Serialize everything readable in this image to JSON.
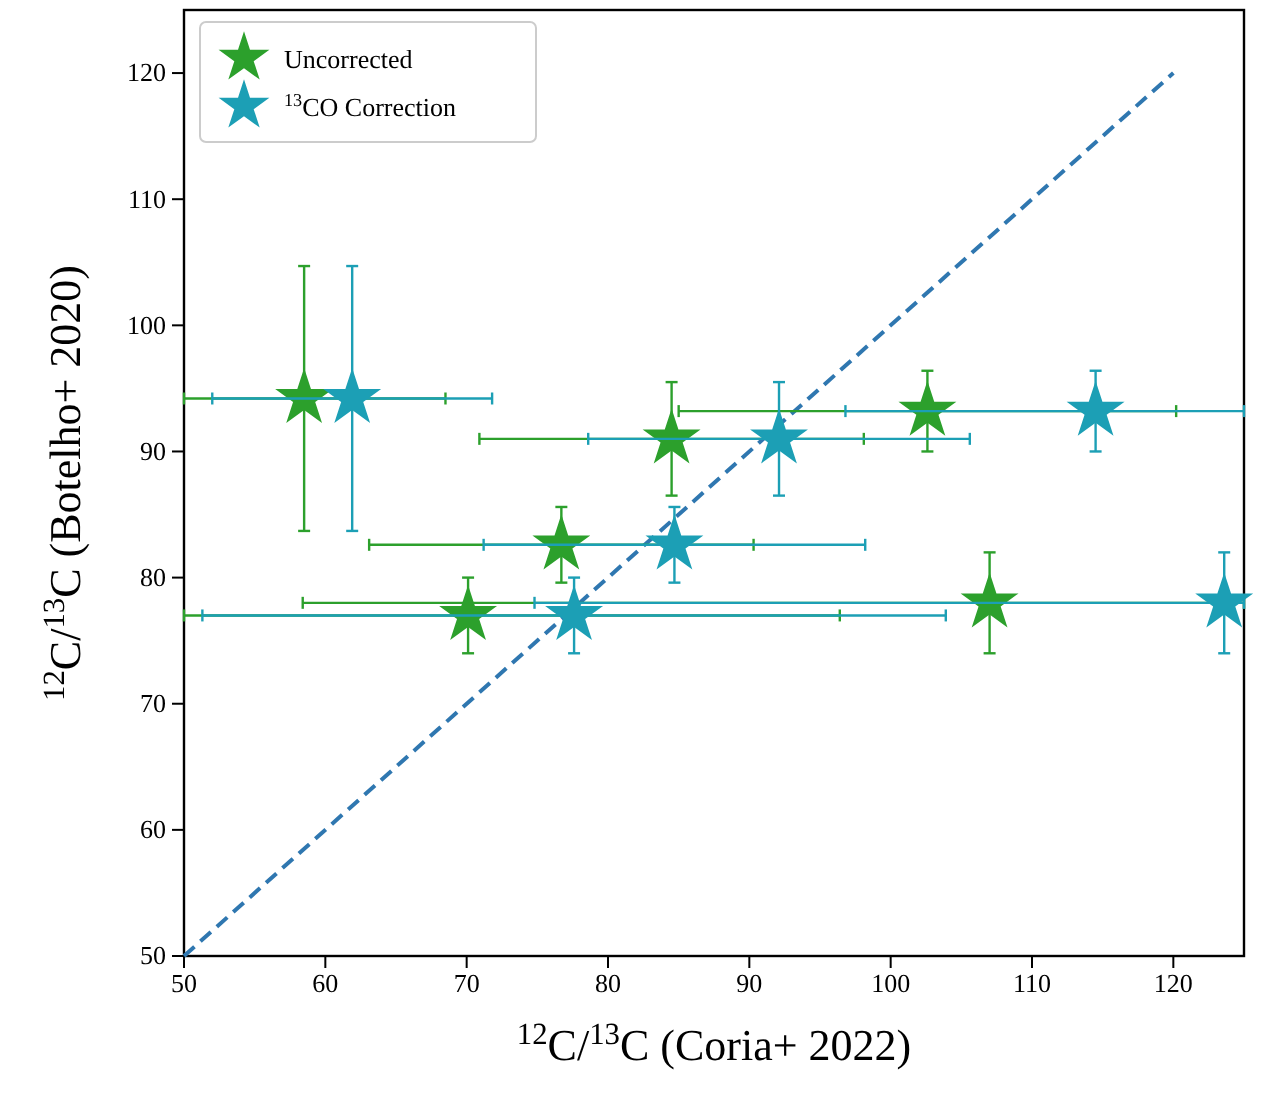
{
  "chart_data": {
    "type": "scatter",
    "xlabel": "$^{12}$C/$^{13}$C (Coria+ 2022)",
    "ylabel": "$^{12}$C/$^{13}$C (Botelho+ 2020)",
    "xlim": [
      50,
      125
    ],
    "ylim": [
      50,
      125
    ],
    "xticks": [
      50,
      60,
      70,
      80,
      90,
      100,
      110,
      120
    ],
    "yticks": [
      50,
      60,
      70,
      80,
      90,
      100,
      110,
      120
    ],
    "marker": "star",
    "legend": "top left",
    "series": [
      {
        "type": "line",
        "marker": "none",
        "color": "#2f77b0",
        "line_style": "dashed",
        "x": [
          50,
          120
        ],
        "values": [
          50,
          120
        ]
      },
      {
        "name": "Uncorrected",
        "color": "#2ca02c",
        "x": [
          58.5,
          84.5,
          76.7,
          70.1,
          102.6,
          107.0
        ],
        "values": [
          94.2,
          91.0,
          82.6,
          77.0,
          93.2,
          78.0
        ],
        "errors": [
          10.5,
          4.5,
          3,
          3,
          3.2,
          4
        ],
        "xerrors": [
          [
            50,
            68.5
          ],
          13.6,
          13.6,
          [
            50,
            96.4
          ],
          17.6,
          [
            58.4,
            125
          ]
        ]
      },
      {
        "name": "$^{13}$CO Correction",
        "color": "#1c9fb5",
        "x": [
          61.9,
          92.1,
          84.7,
          77.6,
          114.5,
          123.6
        ],
        "values": [
          94.2,
          91.0,
          82.6,
          77.0,
          93.2,
          78.0
        ],
        "errors": [
          10.5,
          4.5,
          3,
          3,
          3.2,
          4
        ],
        "xerrors": [
          9.9,
          13.5,
          13.5,
          26.3,
          [
            96.8,
            125
          ],
          [
            74.8,
            125
          ]
        ]
      }
    ]
  }
}
